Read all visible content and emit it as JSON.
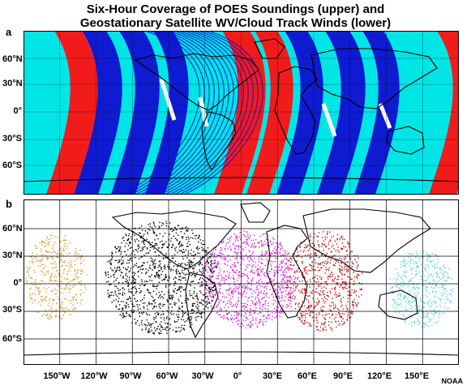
{
  "title": {
    "line1": "Six-Hour Coverage of POES Soundings (upper) and",
    "line2": "Geostationary Satellite WV/Cloud Track Winds (lower)"
  },
  "panels": {
    "upper": {
      "letter": "a"
    },
    "lower": {
      "letter": "b"
    }
  },
  "latitude_labels": [
    "60°N",
    "30°N",
    "0°",
    "30°S",
    "60°S"
  ],
  "longitude_labels": [
    "150°W",
    "120°W",
    "90°W",
    "60°W",
    "30°W",
    "0°",
    "30°E",
    "60°E",
    "90°E",
    "120°E",
    "150°E"
  ],
  "credit": "NOAA",
  "colors": {
    "background_cyan": "#00e5e5",
    "swath_blue": "#1010d0",
    "swath_red": "#ff1010",
    "orange": "#e09a30",
    "black": "#000000",
    "magenta": "#e020e0",
    "darkred": "#cc1010",
    "lightcyan": "#60d8e0"
  }
}
